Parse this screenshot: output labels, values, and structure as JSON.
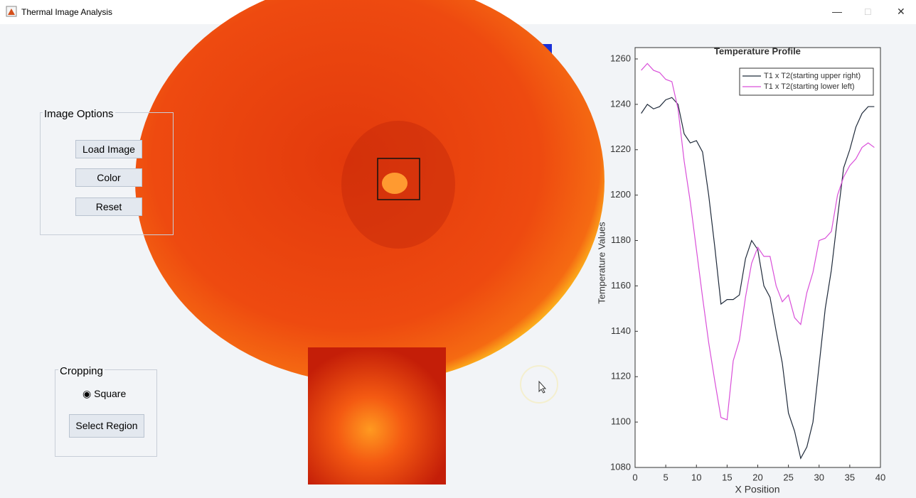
{
  "window": {
    "title": "Thermal Image Analysis"
  },
  "image_options": {
    "title": "Image Options",
    "buttons": [
      "Load Image",
      "Color",
      "Reset"
    ]
  },
  "cropping": {
    "title": "Cropping",
    "radio": "Square",
    "button": "Select Region"
  },
  "chart_data": {
    "type": "line",
    "title": "Temperature Profile",
    "xlabel": "X Position",
    "ylabel": "Temperature Values",
    "x": [
      1,
      2,
      3,
      4,
      5,
      6,
      7,
      8,
      9,
      10,
      11,
      12,
      13,
      14,
      15,
      16,
      17,
      18,
      19,
      20,
      21,
      22,
      23,
      24,
      25,
      26,
      27,
      28,
      29,
      30,
      31,
      32,
      33,
      34,
      35,
      36,
      37,
      38,
      39
    ],
    "series": [
      {
        "name": "T1 x T2(starting upper right)",
        "color": "#1f2a3a",
        "values": [
          1236,
          1240,
          1238,
          1239,
          1242,
          1243,
          1240,
          1227,
          1223,
          1224,
          1219,
          1200,
          1177,
          1152,
          1154,
          1154,
          1156,
          1172,
          1180,
          1176,
          1160,
          1155,
          1140,
          1126,
          1104,
          1096,
          1084,
          1089,
          1100,
          1125,
          1150,
          1167,
          1190,
          1212,
          1220,
          1230,
          1236,
          1239,
          1239
        ]
      },
      {
        "name": "T1 x T2(starting lower left)",
        "color": "#d94fd9",
        "values": [
          1255,
          1258,
          1255,
          1254,
          1251,
          1250,
          1238,
          1215,
          1197,
          1176,
          1155,
          1135,
          1118,
          1102,
          1101,
          1127,
          1136,
          1155,
          1170,
          1177,
          1173,
          1173,
          1160,
          1153,
          1156,
          1146,
          1143,
          1157,
          1166,
          1180,
          1181,
          1184,
          1200,
          1208,
          1213,
          1216,
          1221,
          1223,
          1221
        ]
      }
    ],
    "xlim": [
      0,
      40
    ],
    "xticks": [
      0,
      5,
      10,
      15,
      20,
      25,
      30,
      35,
      40
    ],
    "ylim": [
      1080,
      1265
    ],
    "yticks": [
      1080,
      1100,
      1120,
      1140,
      1160,
      1180,
      1200,
      1220,
      1240,
      1260
    ],
    "grid": false,
    "legend": "upper-right"
  }
}
